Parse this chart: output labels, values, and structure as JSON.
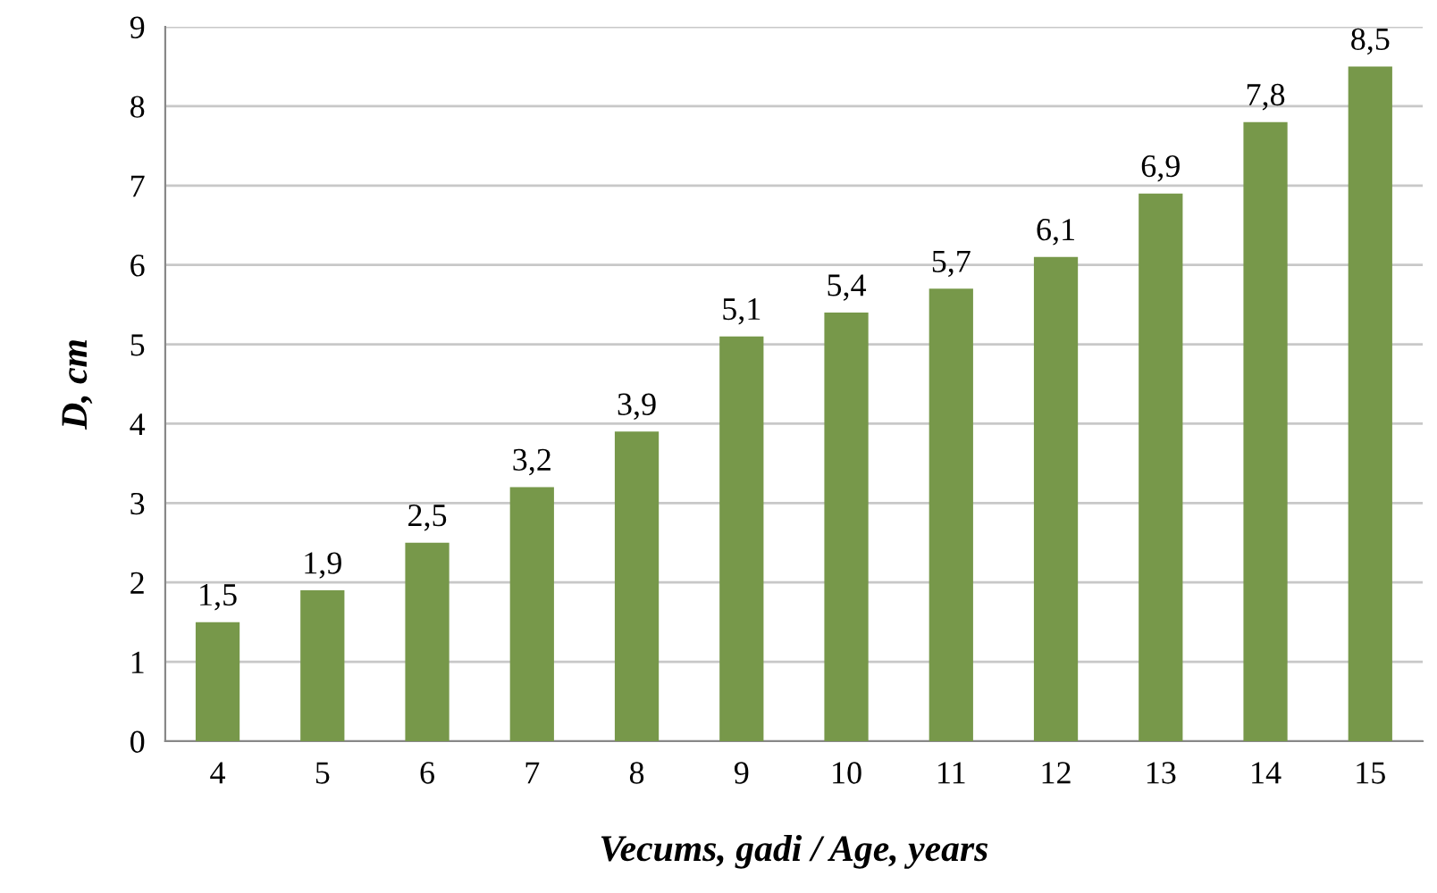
{
  "chart_data": {
    "type": "bar",
    "xlabel": "Vecums, gadi / Age, years",
    "ylabel": "D, cm",
    "categories": [
      "4",
      "5",
      "6",
      "7",
      "8",
      "9",
      "10",
      "11",
      "12",
      "13",
      "14",
      "15"
    ],
    "values": [
      1.5,
      1.9,
      2.5,
      3.2,
      3.9,
      5.1,
      5.4,
      5.7,
      6.1,
      6.9,
      7.8,
      8.5
    ],
    "value_labels": [
      "1,5",
      "1,9",
      "2,5",
      "3,2",
      "3,9",
      "5,1",
      "5,4",
      "5,7",
      "6,1",
      "6,9",
      "7,8",
      "8,5"
    ],
    "color": "#77984a",
    "ylim": [
      0,
      9
    ],
    "yticks": [
      0,
      1,
      2,
      3,
      4,
      5,
      6,
      7,
      8,
      9
    ],
    "grid": "y",
    "legend": false
  }
}
